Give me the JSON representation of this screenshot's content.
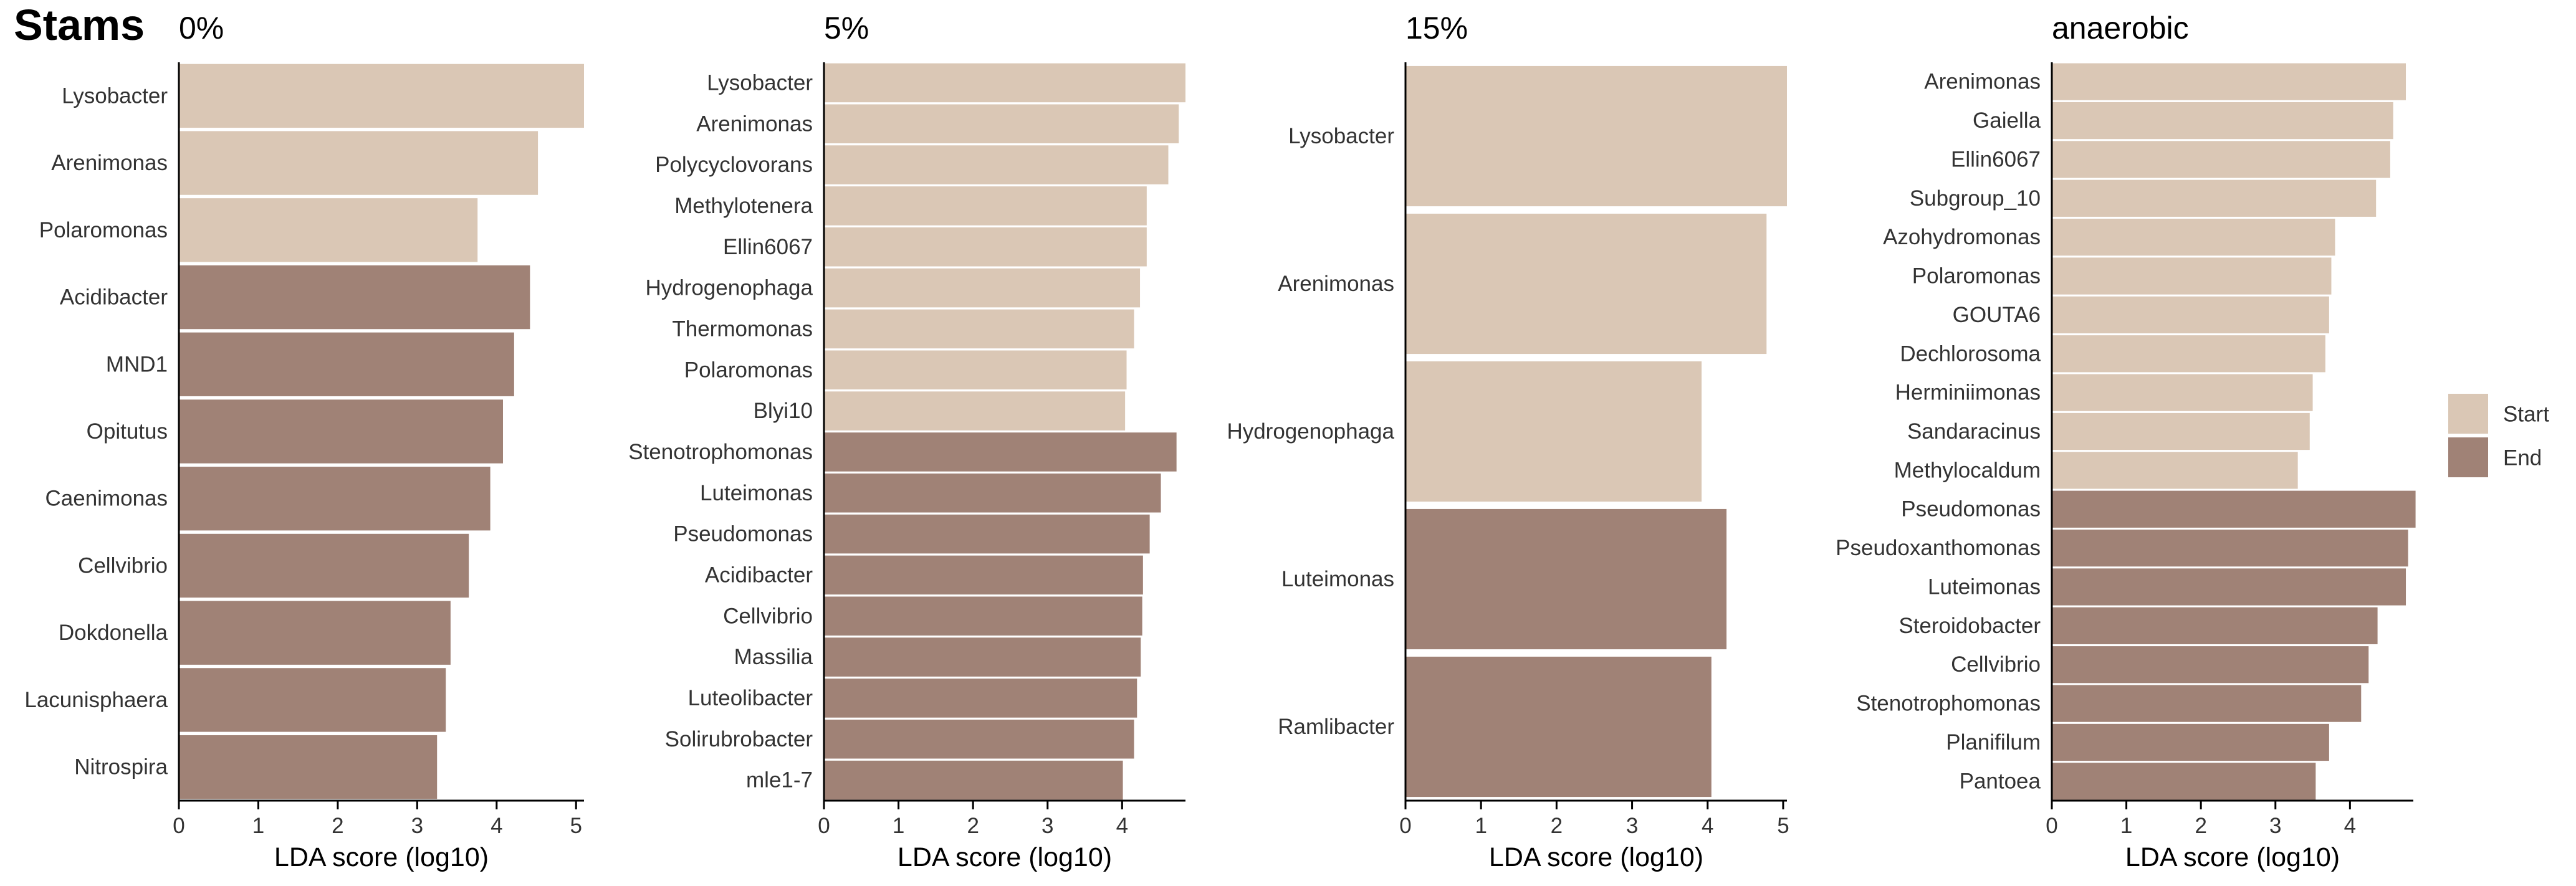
{
  "figure": {
    "title": "Stams"
  },
  "colors": {
    "start": "#dac7b5",
    "end": "#a08276"
  },
  "legend": {
    "items": [
      {
        "label": "Start",
        "group": "start"
      },
      {
        "label": "End",
        "group": "end"
      }
    ]
  },
  "chart_data": [
    {
      "type": "bar",
      "orientation": "horizontal",
      "title": "0%",
      "xlabel": "LDA score (log10)",
      "xlim": [
        0,
        5.1
      ],
      "xticks": [
        0,
        1,
        2,
        3,
        4,
        5
      ],
      "categories": [
        "Lysobacter",
        "Arenimonas",
        "Polaromonas",
        "Acidibacter",
        "MND1",
        "Opitutus",
        "Caenimonas",
        "Cellvibrio",
        "Dokdonella",
        "Lacunisphaera",
        "Nitrospira"
      ],
      "values": [
        5.1,
        4.52,
        3.76,
        4.42,
        4.22,
        4.08,
        3.92,
        3.65,
        3.42,
        3.36,
        3.25
      ],
      "groups": [
        "start",
        "start",
        "start",
        "end",
        "end",
        "end",
        "end",
        "end",
        "end",
        "end",
        "end"
      ]
    },
    {
      "type": "bar",
      "orientation": "horizontal",
      "title": "5%",
      "xlabel": "LDA score (log10)",
      "xlim": [
        0,
        4.85
      ],
      "xticks": [
        0,
        1,
        2,
        3,
        4
      ],
      "categories": [
        "Lysobacter",
        "Arenimonas",
        "Polycyclovorans",
        "Methylotenera",
        "Ellin6067",
        "Hydrogenophaga",
        "Thermomonas",
        "Polaromonas",
        "Blyi10",
        "Stenotrophomonas",
        "Luteimonas",
        "Pseudomonas",
        "Acidibacter",
        "Cellvibrio",
        "Massilia",
        "Luteolibacter",
        "Solirubrobacter",
        "mle1-7"
      ],
      "values": [
        4.85,
        4.76,
        4.62,
        4.33,
        4.33,
        4.24,
        4.16,
        4.06,
        4.04,
        4.73,
        4.52,
        4.37,
        4.28,
        4.27,
        4.25,
        4.2,
        4.16,
        4.01
      ],
      "groups": [
        "start",
        "start",
        "start",
        "start",
        "start",
        "start",
        "start",
        "start",
        "start",
        "end",
        "end",
        "end",
        "end",
        "end",
        "end",
        "end",
        "end",
        "end"
      ]
    },
    {
      "type": "bar",
      "orientation": "horizontal",
      "title": "15%",
      "xlabel": "LDA score (log10)",
      "xlim": [
        0,
        5.05
      ],
      "xticks": [
        0,
        1,
        2,
        3,
        4,
        5
      ],
      "categories": [
        "Lysobacter",
        "Arenimonas",
        "Hydrogenophaga",
        "Luteimonas",
        "Ramlibacter"
      ],
      "values": [
        5.05,
        4.78,
        3.92,
        4.25,
        4.05
      ],
      "groups": [
        "start",
        "start",
        "start",
        "end",
        "end"
      ]
    },
    {
      "type": "bar",
      "orientation": "horizontal",
      "title": "anaerobic",
      "xlabel": "LDA score (log10)",
      "xlim": [
        0,
        4.85
      ],
      "xticks": [
        0,
        1,
        2,
        3,
        4
      ],
      "categories": [
        "Arenimonas",
        "Gaiella",
        "Ellin6067",
        "Subgroup_10",
        "Azohydromonas",
        "Polaromonas",
        "GOUTA6",
        "Dechlorosoma",
        "Herminiimonas",
        "Sandaracinus",
        "Methylocaldum",
        "Pseudomonas",
        "Pseudoxanthomonas",
        "Luteimonas",
        "Steroidobacter",
        "Cellvibrio",
        "Stenotrophomonas",
        "Planifilum",
        "Pantoea"
      ],
      "values": [
        4.75,
        4.58,
        4.54,
        4.35,
        3.8,
        3.75,
        3.72,
        3.67,
        3.5,
        3.46,
        3.3,
        4.88,
        4.78,
        4.75,
        4.37,
        4.25,
        4.15,
        3.72,
        3.54
      ],
      "groups": [
        "start",
        "start",
        "start",
        "start",
        "start",
        "start",
        "start",
        "start",
        "start",
        "start",
        "start",
        "end",
        "end",
        "end",
        "end",
        "end",
        "end",
        "end",
        "end"
      ]
    }
  ]
}
